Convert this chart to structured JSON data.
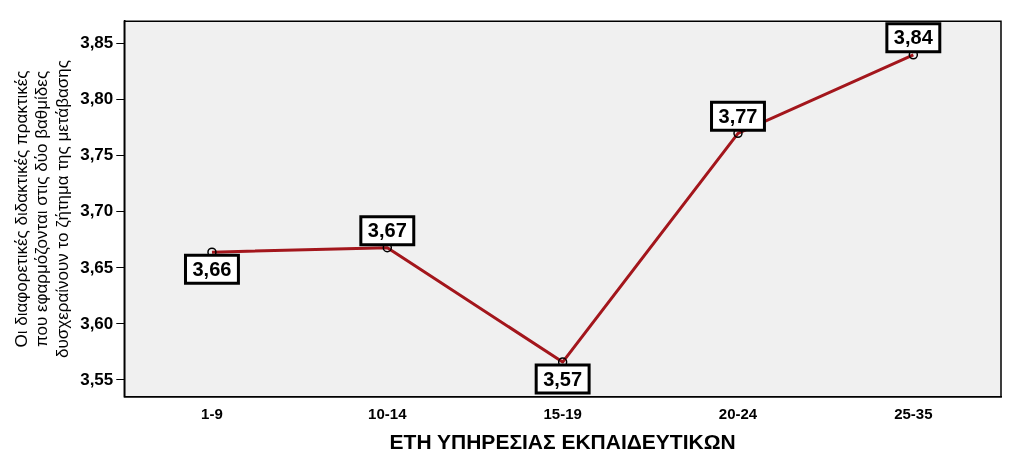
{
  "chart_data": {
    "type": "line",
    "xlabel": "ΕΤΗ ΥΠΗΡΕΣΙΑΣ ΕΚΠΑΙΔΕΥΤΙΚΩΝ",
    "ylabel": "Οι διαφορετικές διδακτικές πρακτικές\nπου εφαρμόζονται στις δύο βαθμίδες\nδυσχεραίνουν το ζήτημα της μετάβασης",
    "categories": [
      "1-9",
      "10-14",
      "15-19",
      "20-24",
      "25-35"
    ],
    "series": [
      {
        "color": "#a3161c",
        "values": [
          3.664,
          3.668,
          3.566,
          3.77,
          3.84
        ],
        "value_labels": [
          "3,66",
          "3,67",
          "3,57",
          "3,77",
          "3,84"
        ]
      }
    ],
    "ylim": [
      3.535,
      3.87
    ],
    "yticks": [
      {
        "value": 3.55,
        "label": "3,55"
      },
      {
        "value": 3.6,
        "label": "3,60"
      },
      {
        "value": 3.65,
        "label": "3,65"
      },
      {
        "value": 3.7,
        "label": "3,70"
      },
      {
        "value": 3.75,
        "label": "3,75"
      },
      {
        "value": 3.8,
        "label": "3,80"
      },
      {
        "value": 3.85,
        "label": "3,85"
      }
    ],
    "grid": false,
    "legend": false,
    "marker": "circle",
    "line_style": "solid"
  }
}
